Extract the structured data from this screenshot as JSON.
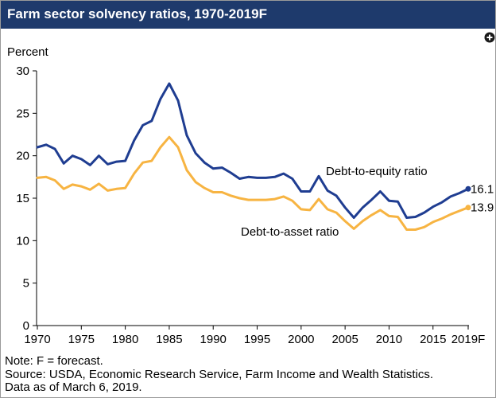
{
  "colors": {
    "title_bar": "#1e3a6c",
    "title_text": "#ffffff",
    "background": "#ffffff"
  },
  "icons": {
    "expand": "plus-circle-icon"
  },
  "chart_data": {
    "type": "line",
    "title": "Farm sector solvency ratios, 1970-2019F",
    "xlabel": "",
    "ylabel": "Percent",
    "xlim": [
      1970,
      2019
    ],
    "ylim": [
      0,
      30
    ],
    "xticks": [
      1970,
      1975,
      1980,
      1985,
      1990,
      1995,
      2000,
      2005,
      2010,
      2015,
      2019
    ],
    "xtick_labels": [
      "1970",
      "1975",
      "1980",
      "1985",
      "1990",
      "1995",
      "2000",
      "2005",
      "2010",
      "2015",
      "2019F"
    ],
    "yticks": [
      0,
      5,
      10,
      15,
      20,
      25,
      30
    ],
    "grid": false,
    "x": [
      1970,
      1971,
      1972,
      1973,
      1974,
      1975,
      1976,
      1977,
      1978,
      1979,
      1980,
      1981,
      1982,
      1983,
      1984,
      1985,
      1986,
      1987,
      1988,
      1989,
      1990,
      1991,
      1992,
      1993,
      1994,
      1995,
      1996,
      1997,
      1998,
      1999,
      2000,
      2001,
      2002,
      2003,
      2004,
      2005,
      2006,
      2007,
      2008,
      2009,
      2010,
      2011,
      2012,
      2013,
      2014,
      2015,
      2016,
      2017,
      2018,
      2019
    ],
    "series": [
      {
        "name": "Debt-to-equity ratio",
        "color": "#1f3d91",
        "end_label": "16.1",
        "values": [
          21.0,
          21.3,
          20.8,
          19.1,
          20.0,
          19.6,
          18.9,
          20.0,
          19.0,
          19.3,
          19.4,
          21.8,
          23.6,
          24.1,
          26.7,
          28.5,
          26.5,
          22.4,
          20.3,
          19.2,
          18.5,
          18.6,
          18.0,
          17.3,
          17.5,
          17.4,
          17.4,
          17.5,
          17.9,
          17.3,
          15.8,
          15.8,
          17.6,
          15.9,
          15.3,
          13.9,
          12.7,
          13.9,
          14.8,
          15.8,
          14.7,
          14.6,
          12.7,
          12.8,
          13.3,
          14.0,
          14.5,
          15.2,
          15.6,
          16.1
        ]
      },
      {
        "name": "Debt-to-asset ratio",
        "color": "#f7b442",
        "end_label": "13.9",
        "values": [
          17.4,
          17.5,
          17.1,
          16.1,
          16.6,
          16.4,
          16.0,
          16.7,
          15.9,
          16.1,
          16.2,
          17.9,
          19.2,
          19.4,
          21.0,
          22.2,
          21.0,
          18.3,
          16.9,
          16.2,
          15.7,
          15.7,
          15.3,
          15.0,
          14.8,
          14.8,
          14.8,
          14.9,
          15.2,
          14.7,
          13.7,
          13.6,
          14.9,
          13.7,
          13.3,
          12.3,
          11.4,
          12.3,
          13.0,
          13.6,
          12.9,
          12.8,
          11.3,
          11.3,
          11.6,
          12.2,
          12.6,
          13.1,
          13.5,
          13.9
        ]
      }
    ]
  },
  "notes": [
    "Note: F = forecast.",
    "Source: USDA, Economic Research Service, Farm Income and Wealth Statistics.",
    "Data as of March 6, 2019."
  ]
}
